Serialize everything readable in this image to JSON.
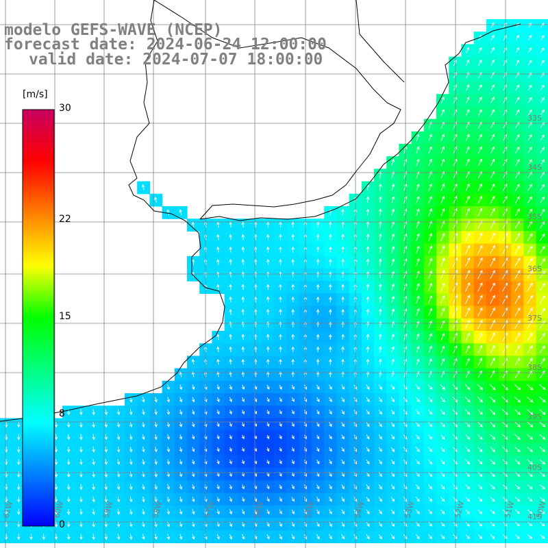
{
  "title": {
    "line1": "modelo GEFS-WAVE (NCEP)",
    "line2": "forecast date: 2024-06-24 12:00:00",
    "line3": "valid date: 2024-07-07 18:00:00"
  },
  "colorbar": {
    "unit": "[m/s]",
    "ticks": [
      {
        "label": "30",
        "value": 30
      },
      {
        "label": "22",
        "value": 22
      },
      {
        "label": "15",
        "value": 15
      },
      {
        "label": "8",
        "value": 8
      },
      {
        "label": "0",
        "value": 0
      }
    ],
    "colors": [
      "#0000ff",
      "#0080ff",
      "#00ffff",
      "#00ff80",
      "#00ff00",
      "#ffff00",
      "#ff8000",
      "#ff0000",
      "#c80060"
    ]
  },
  "grid": {
    "lat_labels": [
      "33S",
      "34S",
      "35S",
      "36S",
      "37S",
      "38S",
      "39S",
      "40S",
      "41S"
    ],
    "lon_labels": [
      "61W",
      "60W",
      "59W",
      "58W",
      "57W",
      "56W",
      "55W",
      "54W",
      "53W",
      "52W",
      "51W",
      "50W"
    ]
  },
  "colors": {
    "land": "#ffffff",
    "grid": "#808080",
    "coast": "#000000",
    "arrow": "#ffffff"
  }
}
